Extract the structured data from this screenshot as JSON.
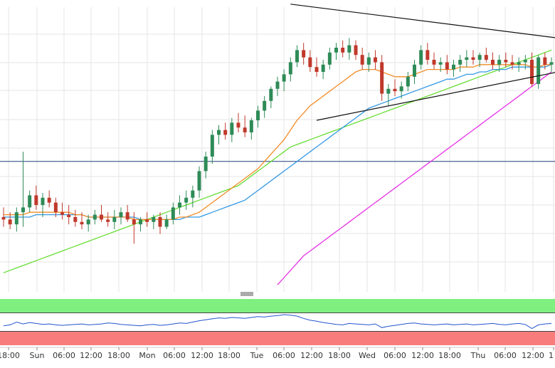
{
  "chart_data": {
    "type": "candlestick",
    "x_labels": [
      "18:00",
      "Sun",
      "06:00",
      "12:00",
      "18:00",
      "Mon",
      "06:00",
      "12:00",
      "18:00",
      "Tue",
      "06:00",
      "12:00",
      "18:00",
      "Wed",
      "06:00",
      "12:00",
      "18:00",
      "Thu",
      "06:00",
      "12:00",
      "1"
    ],
    "x_tick_positions": [
      12,
      52,
      90,
      128,
      167,
      207,
      245,
      284,
      322,
      361,
      399,
      438,
      477,
      516,
      555,
      594,
      632,
      672,
      710,
      749,
      778
    ],
    "y_range": [
      0,
      100
    ],
    "grid": true,
    "candles": [
      {
        "t": 0,
        "o": 25,
        "h": 29,
        "l": 21,
        "c": 24
      },
      {
        "t": 1,
        "o": 24,
        "h": 27,
        "l": 20,
        "c": 22
      },
      {
        "t": 2,
        "o": 22,
        "h": 29,
        "l": 19,
        "c": 27
      },
      {
        "t": 3,
        "o": 27,
        "h": 52,
        "l": 21,
        "c": 29
      },
      {
        "t": 4,
        "o": 29,
        "h": 36,
        "l": 27,
        "c": 34
      },
      {
        "t": 5,
        "o": 34,
        "h": 38,
        "l": 28,
        "c": 30
      },
      {
        "t": 6,
        "o": 30,
        "h": 35,
        "l": 25,
        "c": 33
      },
      {
        "t": 7,
        "o": 33,
        "h": 36,
        "l": 29,
        "c": 31
      },
      {
        "t": 8,
        "o": 31,
        "h": 33,
        "l": 25,
        "c": 27
      },
      {
        "t": 9,
        "o": 27,
        "h": 31,
        "l": 24,
        "c": 26
      },
      {
        "t": 10,
        "o": 26,
        "h": 30,
        "l": 22,
        "c": 25
      },
      {
        "t": 11,
        "o": 25,
        "h": 28,
        "l": 21,
        "c": 23
      },
      {
        "t": 12,
        "o": 23,
        "h": 27,
        "l": 20,
        "c": 22
      },
      {
        "t": 13,
        "o": 22,
        "h": 26,
        "l": 19,
        "c": 24
      },
      {
        "t": 14,
        "o": 24,
        "h": 28,
        "l": 22,
        "c": 26
      },
      {
        "t": 15,
        "o": 26,
        "h": 30,
        "l": 23,
        "c": 24
      },
      {
        "t": 16,
        "o": 24,
        "h": 27,
        "l": 21,
        "c": 23
      },
      {
        "t": 17,
        "o": 23,
        "h": 28,
        "l": 20,
        "c": 25
      },
      {
        "t": 18,
        "o": 25,
        "h": 29,
        "l": 22,
        "c": 27
      },
      {
        "t": 19,
        "o": 27,
        "h": 30,
        "l": 23,
        "c": 24
      },
      {
        "t": 20,
        "o": 24,
        "h": 27,
        "l": 14,
        "c": 22
      },
      {
        "t": 21,
        "o": 22,
        "h": 25,
        "l": 19,
        "c": 24
      },
      {
        "t": 22,
        "o": 24,
        "h": 27,
        "l": 21,
        "c": 23
      },
      {
        "t": 23,
        "o": 23,
        "h": 26,
        "l": 20,
        "c": 25
      },
      {
        "t": 24,
        "o": 25,
        "h": 27,
        "l": 18,
        "c": 21
      },
      {
        "t": 25,
        "o": 21,
        "h": 26,
        "l": 20,
        "c": 24
      },
      {
        "t": 26,
        "o": 24,
        "h": 31,
        "l": 22,
        "c": 29
      },
      {
        "t": 27,
        "o": 29,
        "h": 34,
        "l": 26,
        "c": 31
      },
      {
        "t": 28,
        "o": 31,
        "h": 36,
        "l": 28,
        "c": 33
      },
      {
        "t": 29,
        "o": 33,
        "h": 38,
        "l": 29,
        "c": 36
      },
      {
        "t": 30,
        "o": 36,
        "h": 46,
        "l": 33,
        "c": 44
      },
      {
        "t": 31,
        "o": 44,
        "h": 52,
        "l": 41,
        "c": 50
      },
      {
        "t": 32,
        "o": 50,
        "h": 61,
        "l": 47,
        "c": 59
      },
      {
        "t": 33,
        "o": 59,
        "h": 63,
        "l": 55,
        "c": 61
      },
      {
        "t": 34,
        "o": 61,
        "h": 64,
        "l": 57,
        "c": 59
      },
      {
        "t": 35,
        "o": 59,
        "h": 66,
        "l": 56,
        "c": 64
      },
      {
        "t": 36,
        "o": 64,
        "h": 68,
        "l": 60,
        "c": 62
      },
      {
        "t": 37,
        "o": 62,
        "h": 67,
        "l": 58,
        "c": 60
      },
      {
        "t": 38,
        "o": 60,
        "h": 66,
        "l": 57,
        "c": 65
      },
      {
        "t": 39,
        "o": 65,
        "h": 71,
        "l": 62,
        "c": 69
      },
      {
        "t": 40,
        "o": 69,
        "h": 75,
        "l": 66,
        "c": 73
      },
      {
        "t": 41,
        "o": 73,
        "h": 79,
        "l": 70,
        "c": 78
      },
      {
        "t": 42,
        "o": 78,
        "h": 83,
        "l": 75,
        "c": 81
      },
      {
        "t": 43,
        "o": 81,
        "h": 86,
        "l": 77,
        "c": 84
      },
      {
        "t": 44,
        "o": 84,
        "h": 91,
        "l": 81,
        "c": 89
      },
      {
        "t": 45,
        "o": 89,
        "h": 96,
        "l": 87,
        "c": 94
      },
      {
        "t": 46,
        "o": 94,
        "h": 97,
        "l": 88,
        "c": 91
      },
      {
        "t": 47,
        "o": 91,
        "h": 94,
        "l": 85,
        "c": 87
      },
      {
        "t": 48,
        "o": 87,
        "h": 91,
        "l": 83,
        "c": 85
      },
      {
        "t": 49,
        "o": 85,
        "h": 90,
        "l": 82,
        "c": 88
      },
      {
        "t": 50,
        "o": 88,
        "h": 95,
        "l": 86,
        "c": 93
      },
      {
        "t": 51,
        "o": 93,
        "h": 97,
        "l": 90,
        "c": 95
      },
      {
        "t": 52,
        "o": 95,
        "h": 98,
        "l": 91,
        "c": 93
      },
      {
        "t": 53,
        "o": 93,
        "h": 99,
        "l": 90,
        "c": 96
      },
      {
        "t": 54,
        "o": 96,
        "h": 98,
        "l": 90,
        "c": 92
      },
      {
        "t": 55,
        "o": 92,
        "h": 95,
        "l": 86,
        "c": 88
      },
      {
        "t": 56,
        "o": 88,
        "h": 93,
        "l": 85,
        "c": 91
      },
      {
        "t": 57,
        "o": 91,
        "h": 94,
        "l": 86,
        "c": 89
      },
      {
        "t": 58,
        "o": 89,
        "h": 92,
        "l": 73,
        "c": 76
      },
      {
        "t": 59,
        "o": 76,
        "h": 80,
        "l": 71,
        "c": 78
      },
      {
        "t": 60,
        "o": 78,
        "h": 82,
        "l": 75,
        "c": 77
      },
      {
        "t": 61,
        "o": 77,
        "h": 81,
        "l": 74,
        "c": 79
      },
      {
        "t": 62,
        "o": 79,
        "h": 85,
        "l": 77,
        "c": 83
      },
      {
        "t": 63,
        "o": 83,
        "h": 90,
        "l": 80,
        "c": 88
      },
      {
        "t": 64,
        "o": 88,
        "h": 96,
        "l": 86,
        "c": 94
      },
      {
        "t": 65,
        "o": 94,
        "h": 97,
        "l": 88,
        "c": 90
      },
      {
        "t": 66,
        "o": 90,
        "h": 93,
        "l": 86,
        "c": 88
      },
      {
        "t": 67,
        "o": 88,
        "h": 91,
        "l": 85,
        "c": 89
      },
      {
        "t": 68,
        "o": 89,
        "h": 92,
        "l": 84,
        "c": 86
      },
      {
        "t": 69,
        "o": 86,
        "h": 90,
        "l": 83,
        "c": 88
      },
      {
        "t": 70,
        "o": 88,
        "h": 92,
        "l": 85,
        "c": 90
      },
      {
        "t": 71,
        "o": 90,
        "h": 94,
        "l": 87,
        "c": 91
      },
      {
        "t": 72,
        "o": 91,
        "h": 94,
        "l": 88,
        "c": 90
      },
      {
        "t": 73,
        "o": 90,
        "h": 93,
        "l": 87,
        "c": 92
      },
      {
        "t": 74,
        "o": 92,
        "h": 95,
        "l": 89,
        "c": 90
      },
      {
        "t": 75,
        "o": 90,
        "h": 93,
        "l": 86,
        "c": 88
      },
      {
        "t": 76,
        "o": 88,
        "h": 92,
        "l": 85,
        "c": 90
      },
      {
        "t": 77,
        "o": 90,
        "h": 93,
        "l": 87,
        "c": 89
      },
      {
        "t": 78,
        "o": 89,
        "h": 92,
        "l": 86,
        "c": 88
      },
      {
        "t": 79,
        "o": 88,
        "h": 91,
        "l": 85,
        "c": 89
      },
      {
        "t": 80,
        "o": 89,
        "h": 92,
        "l": 86,
        "c": 90
      },
      {
        "t": 81,
        "o": 90,
        "h": 93,
        "l": 79,
        "c": 80
      },
      {
        "t": 82,
        "o": 80,
        "h": 92,
        "l": 78,
        "c": 91
      },
      {
        "t": 83,
        "o": 91,
        "h": 93,
        "l": 86,
        "c": 88
      },
      {
        "t": 84,
        "o": 88,
        "h": 91,
        "l": 85,
        "c": 89
      }
    ],
    "ma_orange": [
      26,
      26,
      26,
      26,
      27,
      27,
      27,
      27,
      27,
      27,
      27,
      26,
      26,
      25,
      25,
      25,
      25,
      25,
      25,
      25,
      24,
      24,
      24,
      24,
      24,
      24,
      24,
      25,
      25,
      26,
      27,
      29,
      31,
      33,
      35,
      37,
      39,
      41,
      43,
      45,
      48,
      51,
      54,
      57,
      61,
      65,
      68,
      71,
      73,
      75,
      77,
      79,
      81,
      83,
      85,
      86,
      86,
      86,
      85,
      84,
      83,
      83,
      83,
      84,
      85,
      86,
      86,
      86,
      86,
      86,
      87,
      87,
      87,
      88,
      88,
      88,
      88,
      88,
      88,
      88,
      88,
      87,
      87,
      88,
      88
    ],
    "ma_blue": [
      25,
      25,
      25,
      25,
      25,
      26,
      26,
      26,
      26,
      26,
      26,
      26,
      26,
      25,
      25,
      25,
      25,
      25,
      25,
      25,
      25,
      24,
      24,
      24,
      24,
      24,
      24,
      24,
      25,
      25,
      25,
      26,
      27,
      28,
      29,
      30,
      31,
      32,
      34,
      36,
      38,
      40,
      42,
      44,
      46,
      48,
      50,
      52,
      54,
      56,
      58,
      60,
      62,
      64,
      66,
      68,
      70,
      71,
      72,
      73,
      74,
      75,
      76,
      77,
      78,
      79,
      80,
      81,
      82,
      82,
      83,
      84,
      84,
      85,
      85,
      86,
      86,
      86,
      87,
      87,
      87,
      87,
      87,
      87,
      88
    ],
    "ma_green": [
      2,
      3,
      4,
      5,
      6,
      7,
      8,
      9,
      10,
      11,
      12,
      13,
      14,
      15,
      16,
      17,
      18,
      19,
      20,
      21,
      22,
      23,
      24,
      25,
      26,
      27,
      28,
      29,
      30,
      31,
      32,
      33,
      34,
      35,
      36,
      37,
      38,
      40,
      42,
      44,
      46,
      48,
      50,
      52,
      54,
      55,
      56,
      57,
      58,
      59,
      60,
      61,
      62,
      63,
      64,
      65,
      66,
      67,
      68,
      69,
      70,
      71,
      72,
      73,
      74,
      75,
      76,
      77,
      78,
      79,
      80,
      81,
      82,
      83,
      84,
      85,
      86,
      87,
      88,
      89,
      90,
      91,
      92,
      93,
      94
    ],
    "ma_magenta": [
      null,
      null,
      null,
      null,
      null,
      null,
      null,
      null,
      null,
      null,
      null,
      null,
      null,
      null,
      null,
      null,
      null,
      null,
      null,
      null,
      null,
      null,
      null,
      null,
      null,
      null,
      null,
      null,
      null,
      null,
      null,
      null,
      null,
      null,
      null,
      null,
      null,
      null,
      null,
      null,
      null,
      null,
      -3,
      0,
      3,
      6,
      9,
      11,
      13,
      15,
      17,
      19,
      21,
      23,
      25,
      27,
      29,
      31,
      33,
      35,
      37,
      39,
      41,
      43,
      45,
      47,
      49,
      51,
      53,
      55,
      57,
      59,
      61,
      63,
      65,
      67,
      69,
      71,
      73,
      75,
      77,
      79,
      81,
      83,
      85
    ],
    "horizontal_level": 48,
    "trendlines": [
      {
        "from": {
          "t": 44,
          "v": 113
        },
        "to": {
          "t": 85,
          "v": 99
        }
      },
      {
        "from": {
          "t": 48,
          "v": 65
        },
        "to": {
          "t": 85,
          "v": 85
        }
      }
    ],
    "indicator": {
      "range": [
        0,
        100
      ],
      "overbought": 70,
      "oversold": 30,
      "values": [
        42,
        44,
        50,
        46,
        49,
        47,
        45,
        46,
        44,
        43,
        44,
        45,
        46,
        44,
        45,
        46,
        48,
        47,
        45,
        44,
        43,
        42,
        44,
        45,
        43,
        44,
        46,
        48,
        47,
        50,
        53,
        55,
        57,
        59,
        58,
        60,
        59,
        58,
        60,
        62,
        61,
        63,
        64,
        66,
        65,
        63,
        58,
        54,
        52,
        49,
        47,
        45,
        44,
        47,
        46,
        45,
        44,
        46,
        38,
        41,
        43,
        45,
        47,
        48,
        46,
        45,
        44,
        45,
        46,
        44,
        45,
        46,
        44,
        45,
        46,
        47,
        45,
        44,
        46,
        47,
        45,
        36,
        44,
        46,
        47
      ]
    },
    "colors": {
      "up": "#2e8b57",
      "down": "#c0392b",
      "ma_orange": "#f28c28",
      "ma_blue": "#3399e6",
      "ma_green": "#66dd33",
      "ma_magenta": "#e633e6",
      "level": "#1f3f7a",
      "trend": "#111111",
      "ob_zone": "#7ff07f",
      "os_zone": "#f87c7c",
      "grid": "#e6e6e6"
    }
  }
}
